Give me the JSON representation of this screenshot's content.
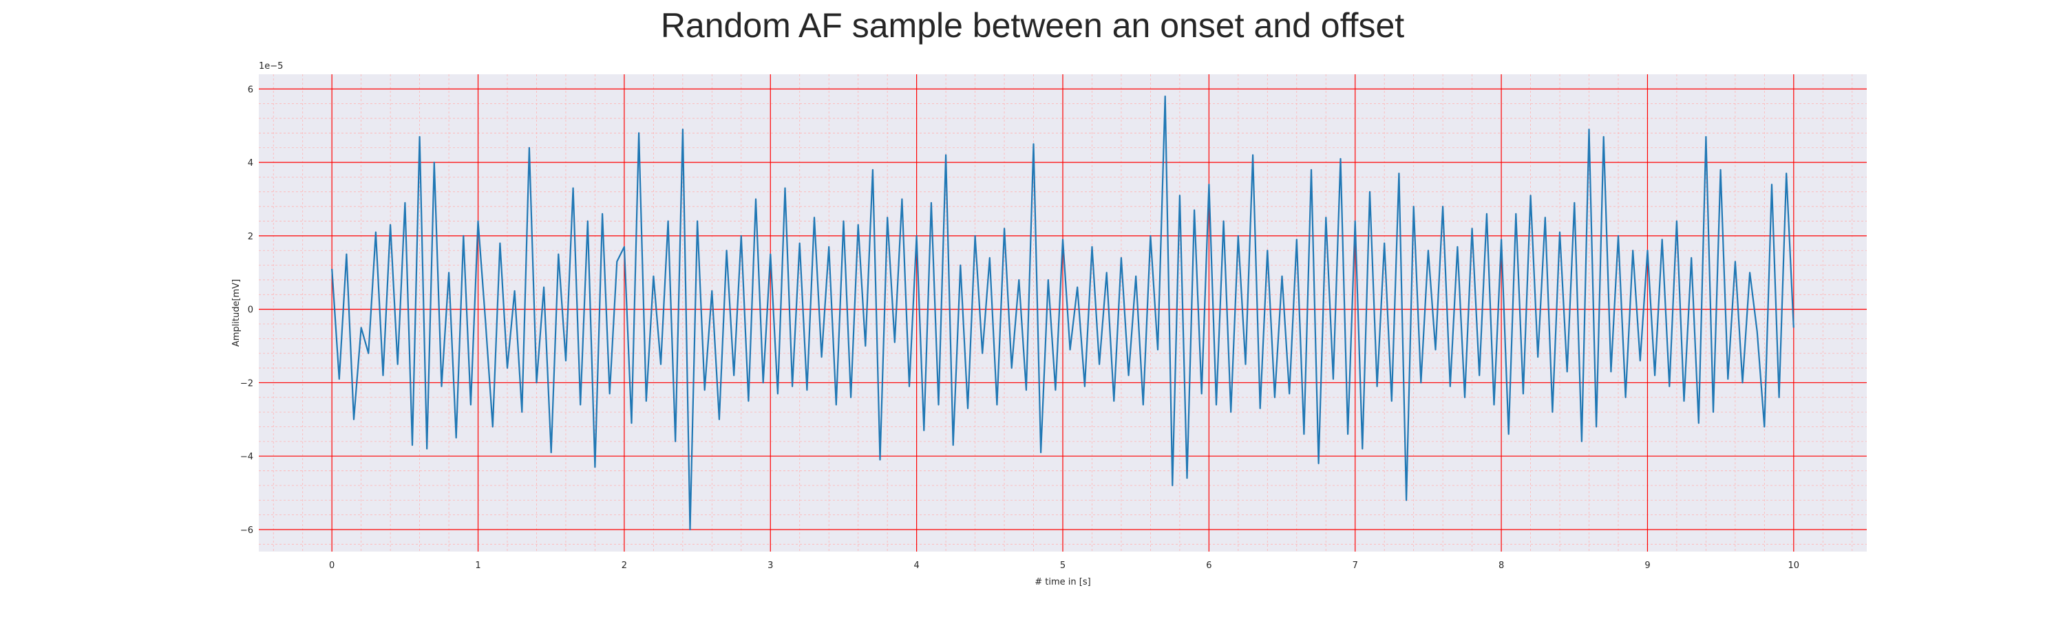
{
  "chart_data": {
    "type": "line",
    "title": "Random AF sample between an onset and offset",
    "xlabel": "# time in [s]",
    "ylabel": "Amplitude[mV]",
    "y_offset_text": "1e−5",
    "xlim": [
      -0.5,
      10.5
    ],
    "ylim": [
      -6.6,
      6.4
    ],
    "x_ticks": [
      "0",
      "1",
      "2",
      "3",
      "4",
      "5",
      "6",
      "7",
      "8",
      "9",
      "10"
    ],
    "y_ticks": [
      "−6",
      "−4",
      "−2",
      "0",
      "2",
      "4",
      "6"
    ],
    "grid": true,
    "legend": "none",
    "colors": {
      "line": "#1f77b4",
      "major_grid": "#ff0000",
      "minor_grid": "#ffb3b3",
      "background": "#eaeaf2"
    },
    "x": [
      0.0,
      0.05,
      0.1,
      0.15,
      0.2,
      0.25,
      0.3,
      0.35,
      0.4,
      0.45,
      0.5,
      0.55,
      0.6,
      0.65,
      0.7,
      0.75,
      0.8,
      0.85,
      0.9,
      0.95,
      1.0,
      1.05,
      1.1,
      1.15,
      1.2,
      1.25,
      1.3,
      1.35,
      1.4,
      1.45,
      1.5,
      1.55,
      1.6,
      1.65,
      1.7,
      1.75,
      1.8,
      1.85,
      1.9,
      1.95,
      2.0,
      2.05,
      2.1,
      2.15,
      2.2,
      2.25,
      2.3,
      2.35,
      2.4,
      2.45,
      2.5,
      2.55,
      2.6,
      2.65,
      2.7,
      2.75,
      2.8,
      2.85,
      2.9,
      2.95,
      3.0,
      3.05,
      3.1,
      3.15,
      3.2,
      3.25,
      3.3,
      3.35,
      3.4,
      3.45,
      3.5,
      3.55,
      3.6,
      3.65,
      3.7,
      3.75,
      3.8,
      3.85,
      3.9,
      3.95,
      4.0,
      4.05,
      4.1,
      4.15,
      4.2,
      4.25,
      4.3,
      4.35,
      4.4,
      4.45,
      4.5,
      4.55,
      4.6,
      4.65,
      4.7,
      4.75,
      4.8,
      4.85,
      4.9,
      4.95,
      5.0,
      5.05,
      5.1,
      5.15,
      5.2,
      5.25,
      5.3,
      5.35,
      5.4,
      5.45,
      5.5,
      5.55,
      5.6,
      5.65,
      5.7,
      5.75,
      5.8,
      5.85,
      5.9,
      5.95,
      6.0,
      6.05,
      6.1,
      6.15,
      6.2,
      6.25,
      6.3,
      6.35,
      6.4,
      6.45,
      6.5,
      6.55,
      6.6,
      6.65,
      6.7,
      6.75,
      6.8,
      6.85,
      6.9,
      6.95,
      7.0,
      7.05,
      7.1,
      7.15,
      7.2,
      7.25,
      7.3,
      7.35,
      7.4,
      7.45,
      7.5,
      7.55,
      7.6,
      7.65,
      7.7,
      7.75,
      7.8,
      7.85,
      7.9,
      7.95,
      8.0,
      8.05,
      8.1,
      8.15,
      8.2,
      8.25,
      8.3,
      8.35,
      8.4,
      8.45,
      8.5,
      8.55,
      8.6,
      8.65,
      8.7,
      8.75,
      8.8,
      8.85,
      8.9,
      8.95,
      9.0,
      9.05,
      9.1,
      9.15,
      9.2,
      9.25,
      9.3,
      9.35,
      9.4,
      9.45,
      9.5,
      9.55,
      9.6,
      9.65,
      9.7,
      9.75,
      9.8,
      9.85,
      9.9,
      9.95,
      10.0
    ],
    "series": [
      {
        "values": [
          1.1,
          -1.9,
          1.5,
          -3.0,
          -0.5,
          -1.2,
          2.1,
          -1.8,
          2.3,
          -1.5,
          2.9,
          -3.7,
          4.7,
          -3.8,
          4.0,
          -2.1,
          1.0,
          -3.5,
          2.0,
          -2.6,
          2.4,
          -0.3,
          -3.2,
          1.8,
          -1.6,
          0.5,
          -2.8,
          4.4,
          -2.0,
          0.6,
          -3.9,
          1.5,
          -1.4,
          3.3,
          -2.6,
          2.4,
          -4.3,
          2.6,
          -2.3,
          1.3,
          1.7,
          -3.1,
          4.8,
          -2.5,
          0.9,
          -1.5,
          2.4,
          -3.6,
          4.9,
          -6.0,
          2.4,
          -2.2,
          0.5,
          -3.0,
          1.6,
          -1.8,
          2.0,
          -2.5,
          3.0,
          -2.0,
          1.5,
          -2.3,
          3.3,
          -2.1,
          1.8,
          -2.2,
          2.5,
          -1.3,
          1.7,
          -2.6,
          2.4,
          -2.4,
          2.3,
          -1.0,
          3.8,
          -4.1,
          2.5,
          -0.9,
          3.0,
          -2.1,
          2.0,
          -3.3,
          2.9,
          -2.6,
          4.2,
          -3.7,
          1.2,
          -2.7,
          2.0,
          -1.2,
          1.4,
          -2.6,
          2.2,
          -1.6,
          0.8,
          -2.2,
          4.5,
          -3.9,
          0.8,
          -2.2,
          1.9,
          -1.1,
          0.6,
          -2.1,
          1.7,
          -1.5,
          1.0,
          -2.5,
          1.4,
          -1.8,
          0.9,
          -2.6,
          2.0,
          -1.1,
          5.8,
          -4.8,
          3.1,
          -4.6,
          2.7,
          -2.3,
          3.4,
          -2.6,
          2.4,
          -2.8,
          2.0,
          -1.5,
          4.2,
          -2.7,
          1.6,
          -2.4,
          0.9,
          -2.3,
          1.9,
          -3.4,
          3.8,
          -4.2,
          2.5,
          -1.9,
          4.1,
          -3.4,
          2.4,
          -3.8,
          3.2,
          -2.1,
          1.8,
          -2.5,
          3.7,
          -5.2,
          2.8,
          -2.0,
          1.6,
          -1.1,
          2.8,
          -2.1,
          1.7,
          -2.4,
          2.2,
          -1.8,
          2.6,
          -2.6,
          1.9,
          -3.4,
          2.6,
          -2.3,
          3.1,
          -1.3,
          2.5,
          -2.8,
          2.1,
          -1.7,
          2.9,
          -3.6,
          4.9,
          -3.2,
          4.7,
          -1.7,
          2.0,
          -2.4,
          1.6,
          -1.4,
          1.6,
          -1.8,
          1.9,
          -2.1,
          2.4,
          -2.5,
          1.4,
          -3.1,
          4.7,
          -2.8,
          3.8,
          -1.9,
          1.3,
          -2.0,
          1.0,
          -0.6,
          -3.2,
          3.4,
          -2.4,
          3.7,
          -0.5
        ]
      }
    ]
  }
}
